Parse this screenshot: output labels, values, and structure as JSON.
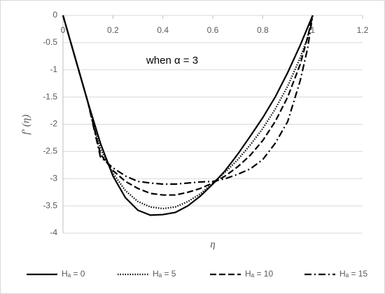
{
  "chart_data": {
    "type": "line",
    "annotation": "when α = 3",
    "xlabel": "η",
    "ylabel": "f′ (η)",
    "x": [
      0,
      0.05,
      0.1,
      0.15,
      0.2,
      0.25,
      0.3,
      0.35,
      0.4,
      0.45,
      0.5,
      0.55,
      0.6,
      0.65,
      0.7,
      0.75,
      0.8,
      0.85,
      0.9,
      0.95,
      0.98,
      1
    ],
    "series": [
      {
        "name": "Hₐ = 0",
        "color": "#000000",
        "dash": "solid",
        "values": [
          0,
          -0.8,
          -1.6,
          -2.35,
          -2.95,
          -3.35,
          -3.58,
          -3.67,
          -3.66,
          -3.62,
          -3.5,
          -3.32,
          -3.1,
          -2.85,
          -2.55,
          -2.22,
          -1.88,
          -1.5,
          -1.05,
          -0.55,
          -0.22,
          0
        ]
      },
      {
        "name": "Hₐ = 5",
        "color": "#000000",
        "dash": "dotted",
        "values": [
          0,
          -0.8,
          -1.6,
          -2.45,
          -2.9,
          -3.22,
          -3.42,
          -3.52,
          -3.55,
          -3.52,
          -3.42,
          -3.28,
          -3.08,
          -2.88,
          -2.65,
          -2.38,
          -2.08,
          -1.72,
          -1.3,
          -0.78,
          -0.4,
          0
        ]
      },
      {
        "name": "Hₐ = 10",
        "color": "#000000",
        "dash": "dashed",
        "values": [
          0,
          -0.8,
          -1.6,
          -2.55,
          -2.85,
          -3.05,
          -3.18,
          -3.27,
          -3.3,
          -3.3,
          -3.25,
          -3.18,
          -3.08,
          -2.95,
          -2.78,
          -2.57,
          -2.3,
          -1.95,
          -1.5,
          -0.9,
          -0.4,
          0
        ]
      },
      {
        "name": "Hₐ = 15",
        "color": "#000000",
        "dash": "dashdot",
        "values": [
          0,
          -0.8,
          -1.6,
          -2.6,
          -2.8,
          -2.95,
          -3.05,
          -3.08,
          -3.1,
          -3.1,
          -3.08,
          -3.06,
          -3.05,
          -3.0,
          -2.92,
          -2.82,
          -2.65,
          -2.35,
          -1.95,
          -1.2,
          -0.6,
          0
        ]
      }
    ],
    "xlim": [
      0,
      1.2
    ],
    "xticks": [
      0,
      0.2,
      0.4,
      0.6,
      0.8,
      1,
      1.2
    ],
    "ylim": [
      -4,
      0
    ],
    "yticks": [
      0,
      -0.5,
      -1,
      -1.5,
      -2,
      -2.5,
      -3,
      -3.5,
      -4
    ],
    "grid": true,
    "legend": "bottom"
  }
}
